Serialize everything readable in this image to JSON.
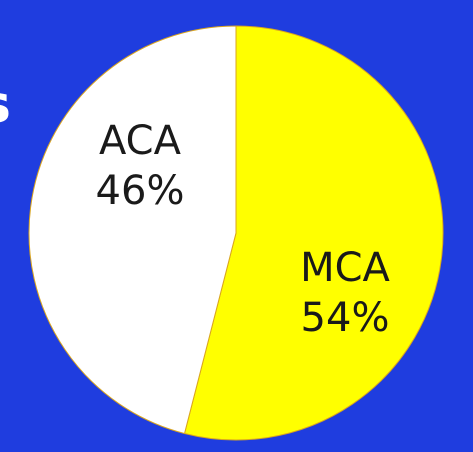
{
  "chart_data": {
    "type": "pie",
    "annotation": "s",
    "categories": [
      "MCA",
      "ACA"
    ],
    "values": [
      54,
      46
    ],
    "value_labels": [
      "54%",
      "46%"
    ],
    "colors": [
      "#ffff00",
      "#ffffff"
    ]
  }
}
